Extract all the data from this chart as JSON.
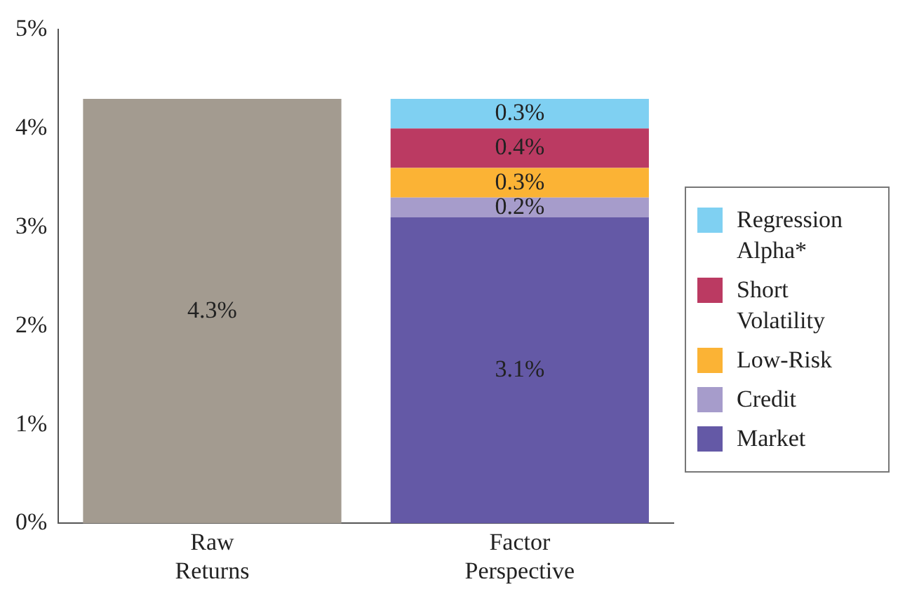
{
  "chart_data": {
    "type": "bar",
    "stacked": true,
    "categories": [
      "Raw Returns",
      "Factor Perspective"
    ],
    "series": [
      {
        "color": "#a39b90",
        "values": [
          4.3,
          null
        ],
        "value_labels": [
          "4.3%",
          null
        ]
      },
      {
        "name": "Market",
        "color": "#6459a6",
        "values": [
          null,
          3.1
        ],
        "value_labels": [
          null,
          "3.1%"
        ]
      },
      {
        "name": "Credit",
        "color": "#a69ccb",
        "values": [
          null,
          0.2
        ],
        "value_labels": [
          null,
          "0.2%"
        ]
      },
      {
        "name": "Low-Risk",
        "color": "#fbb335",
        "values": [
          null,
          0.3
        ],
        "value_labels": [
          null,
          "0.3%"
        ]
      },
      {
        "name": "Short Volatility",
        "color": "#bb3a62",
        "values": [
          null,
          0.4
        ],
        "value_labels": [
          null,
          "0.4%"
        ]
      },
      {
        "name": "Regression Alpha*",
        "color": "#7fd0f2",
        "values": [
          null,
          0.3
        ],
        "value_labels": [
          null,
          "0.3%"
        ]
      }
    ],
    "ylim": [
      0,
      5
    ],
    "yticks": [
      {
        "value": 0,
        "label": "0%"
      },
      {
        "value": 1,
        "label": "1%"
      },
      {
        "value": 2,
        "label": "2%"
      },
      {
        "value": 3,
        "label": "3%"
      },
      {
        "value": 4,
        "label": "4%"
      },
      {
        "value": 5,
        "label": "5%"
      }
    ],
    "grid": false,
    "legend": "right"
  }
}
